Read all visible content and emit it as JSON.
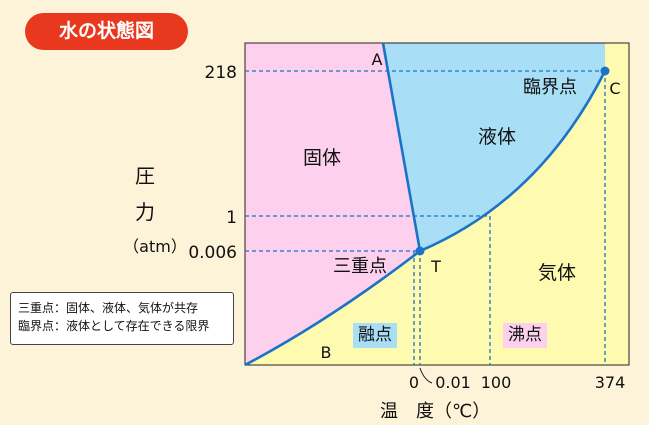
{
  "title": "水の状態図",
  "y_axis": {
    "label_chars": [
      "圧",
      "力"
    ],
    "unit": "（atm）",
    "ticks": [
      "218",
      "1",
      "0.006"
    ]
  },
  "x_axis": {
    "label": "温　度（℃）",
    "ticks": [
      "0",
      "0.01",
      "100",
      "374"
    ]
  },
  "regions": {
    "solid": "固体",
    "liquid": "液体",
    "gas": "気体"
  },
  "points": {
    "A": "A",
    "B": "B",
    "C": "C",
    "T": "T",
    "triple": "三重点",
    "critical": "臨界点"
  },
  "tags": {
    "melting": "融点",
    "boiling": "沸点"
  },
  "note": {
    "line1": "三重点：固体、液体、気体が共存",
    "line2": "臨界点：液体として存在できる限界"
  },
  "colors": {
    "solid": "#fdd0ee",
    "liquid": "#a8dff6",
    "gas": "#fefbb0",
    "curve": "#1a73c6",
    "guide": "#1a73c6",
    "title_badge": "#e8381e"
  }
}
